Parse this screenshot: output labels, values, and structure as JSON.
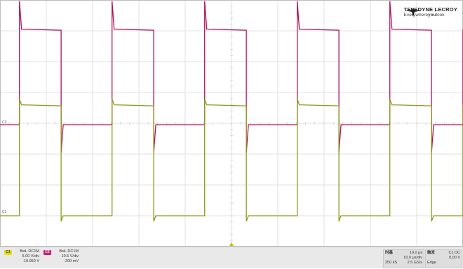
{
  "app": {
    "brand": "TELEDYNE LECROY",
    "tagline_pre": "Everywhere",
    "tagline_you": "you",
    "tagline_post": "look"
  },
  "channels": {
    "c1": {
      "badge": "C1",
      "coupling": "BwL DC1M",
      "scale": "5.00 V/div",
      "offset": "-10.050 V",
      "color": "#8c9a1c",
      "marker": "C1"
    },
    "c2": {
      "badge": "C2",
      "coupling": "BwL DC1M",
      "scale": "10.5 V/div",
      "offset": "-200 mV",
      "color": "#b0145a",
      "marker": "C2"
    }
  },
  "timebase": {
    "label": "时基",
    "delay": "10.0 μs",
    "time_div": "10.0 μs/div",
    "samples": "250 kS",
    "rate": "2.5 GS/s"
  },
  "trigger": {
    "label": "触发",
    "source": "C1 DC",
    "level": "0.00 V",
    "mode": "Edge"
  },
  "waveform": {
    "period_divs": 2,
    "duty": 0.45,
    "phase_divs": 0.42,
    "c1_high_divs": 3.6,
    "c1_low_divs": 0.0,
    "c2_high_divs": 3.1,
    "c2_low_divs": 0.0
  },
  "grid": {
    "h_divs": 10,
    "v_divs": 8
  }
}
